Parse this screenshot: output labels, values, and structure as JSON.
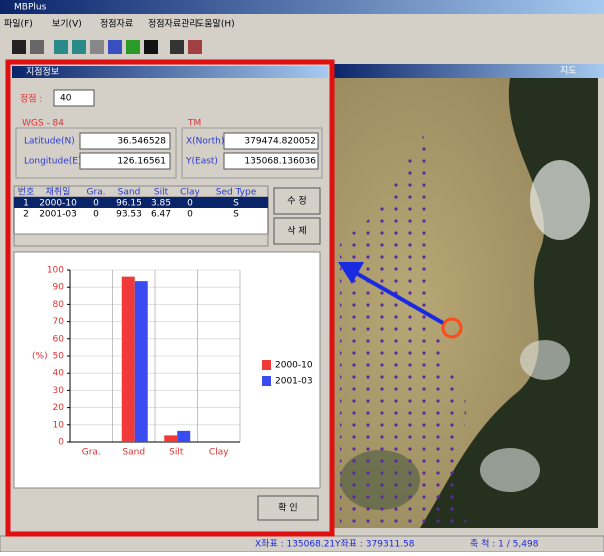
{
  "window": {
    "title": "MBPlus",
    "menu": [
      "파일(F)",
      "보기(V)",
      "정점자료",
      "정점자료관리",
      "도움말(H)"
    ]
  },
  "dialog": {
    "title": "지점정보",
    "station_label": "정점 :",
    "station_value": "40",
    "wgs_title": "WGS - 84",
    "tm_title": "TM",
    "lat_label": "Latitude(N)",
    "lat_value": "36.546528",
    "lon_label": "Longitude(E)",
    "lon_value": "126.16561",
    "xn_label": "X(North)",
    "xn_value": "379474.820052",
    "ye_label": "Y(East)",
    "ye_value": "135068.136036",
    "edit_button": "수 정",
    "delete_button": "삭 제",
    "ok_button": "확 인"
  },
  "table": {
    "header": [
      "번호",
      "채취일",
      "Gra.",
      "Sand",
      "Silt",
      "Clay",
      "Sed Type"
    ],
    "rows": [
      [
        "1",
        "2000-10",
        "0",
        "96.15",
        "3.85",
        "0",
        "S"
      ],
      [
        "2",
        "2001-03",
        "0",
        "93.53",
        "6.47",
        "0",
        "S"
      ]
    ]
  },
  "map_window": {
    "title": "지도"
  },
  "status": {
    "x_coord": "X좌표 : 135068.21",
    "y_coord": "Y좌표 : 379311.58",
    "scale": "축 척 : 1 / 5,498"
  },
  "chart_data": {
    "type": "bar",
    "y_label": "(%)",
    "categories": [
      "Gra.",
      "Sand",
      "Silt",
      "Clay"
    ],
    "series": [
      {
        "name": "2000-10",
        "color": "#f03a3a",
        "values": [
          0,
          96.15,
          3.85,
          0
        ]
      },
      {
        "name": "2001-03",
        "color": "#3a4cf0",
        "values": [
          0,
          93.53,
          6.47,
          0
        ]
      }
    ],
    "ylim": [
      0,
      100
    ],
    "yticks": [
      0,
      10,
      20,
      30,
      40,
      50,
      60,
      70,
      80,
      90,
      100
    ],
    "grid": true,
    "legend": "right"
  }
}
